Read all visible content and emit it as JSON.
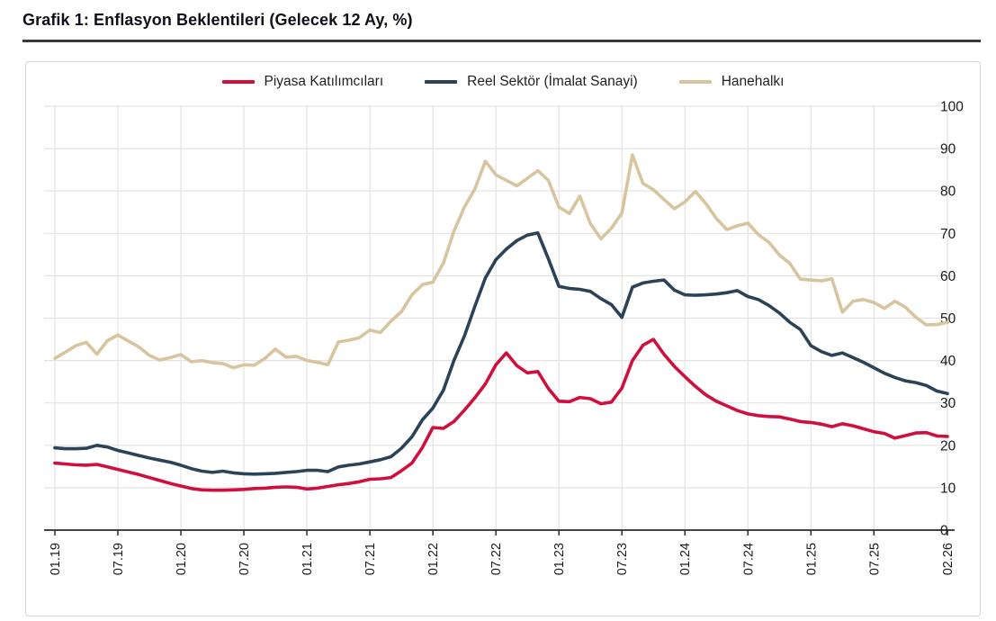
{
  "header": {
    "title": "Grafik 1: Enflasyon Beklentileri (Gelecek 12 Ay, %)"
  },
  "chart_data": {
    "type": "line",
    "title": "Grafik 1: Enflasyon Beklentileri (Gelecek 12 Ay, %)",
    "x_unit": "month",
    "x_start": "01.19",
    "x_end": "02.26",
    "n_points": 86,
    "x_tick_labels": [
      "01.19",
      "07.19",
      "01.20",
      "07.20",
      "01.21",
      "07.21",
      "01.22",
      "07.22",
      "01.23",
      "07.23",
      "01.24",
      "07.24",
      "01.25",
      "07.25",
      "02.26"
    ],
    "x_tick_month_index": [
      0,
      6,
      12,
      18,
      24,
      30,
      36,
      42,
      48,
      54,
      60,
      66,
      72,
      78,
      85
    ],
    "ylabel": "",
    "xlabel": "",
    "ylim": [
      0,
      100
    ],
    "y_ticks": [
      0,
      10,
      20,
      30,
      40,
      50,
      60,
      70,
      80,
      90,
      100
    ],
    "y_axis_side": "right",
    "grid": true,
    "legend_position": "top",
    "series": [
      {
        "name": "Piyasa Katılımcıları",
        "color": "#d00f3d",
        "values": [
          15.8,
          15.6,
          15.4,
          15.3,
          15.5,
          14.9,
          14.3,
          13.7,
          13.1,
          12.4,
          11.7,
          11.0,
          10.4,
          9.8,
          9.5,
          9.4,
          9.4,
          9.5,
          9.6,
          9.8,
          9.9,
          10.1,
          10.2,
          10.1,
          9.7,
          9.9,
          10.3,
          10.7,
          11.0,
          11.4,
          12.0,
          12.1,
          12.4,
          14.0,
          15.8,
          19.5,
          24.2,
          24.0,
          25.6,
          28.3,
          31.2,
          34.5,
          39.0,
          41.8,
          38.8,
          37.1,
          37.4,
          33.4,
          30.4,
          30.3,
          31.3,
          31.0,
          29.8,
          30.2,
          33.5,
          40.0,
          43.6,
          45.0,
          41.5,
          38.6,
          36.2,
          33.9,
          31.9,
          30.4,
          29.3,
          28.2,
          27.4,
          27.0,
          26.8,
          26.7,
          26.2,
          25.6,
          25.4,
          25.0,
          24.4,
          25.1,
          24.6,
          23.9,
          23.2,
          22.8,
          21.7,
          22.3,
          22.9,
          23.0,
          22.2,
          22.1
        ]
      },
      {
        "name": "Reel Sektör (İmalat Sanayi)",
        "color": "#2c4257",
        "values": [
          19.4,
          19.2,
          19.2,
          19.3,
          20.0,
          19.6,
          18.8,
          18.2,
          17.6,
          17.0,
          16.5,
          16.0,
          15.3,
          14.5,
          13.9,
          13.6,
          13.9,
          13.5,
          13.3,
          13.2,
          13.3,
          13.4,
          13.6,
          13.8,
          14.1,
          14.1,
          13.8,
          14.9,
          15.3,
          15.6,
          16.1,
          16.6,
          17.3,
          19.3,
          22.0,
          26.0,
          28.8,
          33.0,
          40.0,
          45.8,
          52.8,
          59.5,
          63.8,
          66.3,
          68.3,
          69.6,
          70.1,
          64.0,
          57.5,
          57.0,
          56.8,
          56.3,
          54.6,
          53.2,
          50.2,
          57.3,
          58.3,
          58.7,
          59.0,
          56.6,
          55.5,
          55.4,
          55.5,
          55.7,
          56.0,
          56.5,
          55.1,
          54.4,
          53.0,
          51.2,
          49.0,
          47.3,
          43.5,
          42.1,
          41.2,
          41.8,
          40.7,
          39.6,
          38.3,
          37.0,
          36.0,
          35.2,
          34.8,
          34.1,
          32.8,
          32.2
        ]
      },
      {
        "name": "Hanehalkı",
        "color": "#d8c49e",
        "values": [
          40.5,
          42.0,
          43.5,
          44.3,
          41.5,
          44.7,
          46.0,
          44.6,
          43.2,
          41.2,
          40.1,
          40.7,
          41.4,
          39.7,
          40.0,
          39.5,
          39.3,
          38.3,
          39.0,
          38.9,
          40.5,
          42.7,
          40.8,
          41.0,
          40.0,
          39.6,
          39.0,
          44.4,
          44.8,
          45.4,
          47.2,
          46.6,
          49.3,
          51.5,
          55.5,
          57.9,
          58.5,
          63.0,
          70.5,
          76.2,
          80.5,
          87.0,
          83.8,
          82.5,
          81.2,
          83.0,
          84.8,
          82.5,
          76.2,
          74.7,
          78.8,
          72.3,
          68.7,
          71.2,
          74.8,
          88.5,
          81.8,
          80.3,
          78.0,
          75.8,
          77.4,
          79.9,
          77.0,
          73.5,
          70.9,
          71.8,
          72.4,
          69.7,
          67.9,
          64.9,
          62.9,
          59.2,
          59.0,
          58.8,
          59.3,
          51.4,
          54.0,
          54.4,
          53.7,
          52.3,
          54.0,
          52.6,
          50.2,
          48.4,
          48.5,
          49.0
        ]
      }
    ],
    "style": {
      "grid_color": "#e3e3e3",
      "axis_color": "#2a2a2a",
      "tick_label_color": "#1a1a1a",
      "line_width": 3.6
    }
  }
}
